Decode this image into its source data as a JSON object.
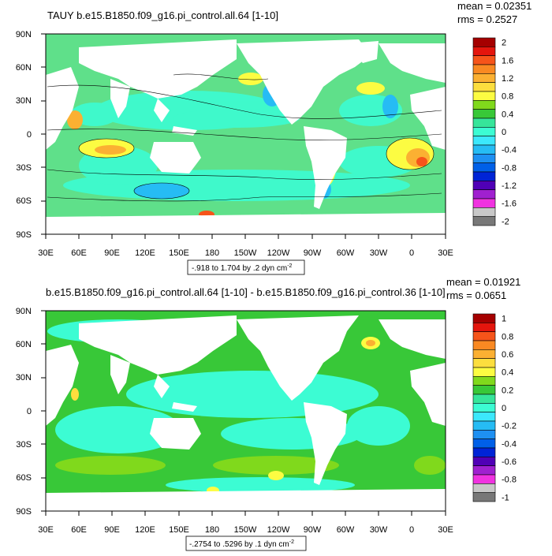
{
  "chart_data": [
    {
      "type": "heatmap",
      "title": "TAUY b.e15.B1850.f09_g16.pi_control.all.64 [1-10]",
      "stats": {
        "mean": "mean = 0.02351",
        "rms": "rms = 0.2527"
      },
      "x_ticks": [
        "30E",
        "60E",
        "90E",
        "120E",
        "150E",
        "180",
        "150W",
        "120W",
        "90W",
        "60W",
        "30W",
        "0",
        "30E"
      ],
      "y_ticks": [
        "90N",
        "60N",
        "30N",
        "0",
        "30S",
        "60S",
        "90S"
      ],
      "range_note": "-.918 to 1.704 by .2 dyn cm",
      "range_sup": "-2",
      "colorbar_labels": [
        "2",
        "1.6",
        "1.2",
        "0.8",
        "0.4",
        "0",
        "-0.4",
        "-0.8",
        "-1.2",
        "-1.6",
        "-2"
      ],
      "colors": [
        "#a50000",
        "#e4150d",
        "#f6541a",
        "#f98922",
        "#fbb032",
        "#fcde3e",
        "#fcfc42",
        "#80d91c",
        "#38c838",
        "#36e59a",
        "#3cfcd3",
        "#3ce8fc",
        "#26bcf4",
        "#1e90f2",
        "#0060e8",
        "#0024d6",
        "#5000b6",
        "#a020d0",
        "#f032e0",
        "#c8c8c8",
        "#787878"
      ],
      "colorbar_fills": [
        [
          "#a50000",
          "#e4150d"
        ],
        [
          "#e4150d",
          "#f6541a"
        ],
        [
          "#f6541a",
          "#f98922"
        ],
        [
          "#f98922",
          "#fbb032"
        ],
        [
          "#fbb032",
          "#fcde3e"
        ],
        [
          "#fcde3e",
          "#fcfc42"
        ],
        [
          "#80d91c",
          "#38c838"
        ],
        [
          "#36e59a",
          "#3cfcd3"
        ],
        [
          "#3ce8fc",
          "#26bcf4"
        ],
        [
          "#1e90f2",
          "#0060e8"
        ],
        [
          "#0024d6",
          "#5000b6"
        ],
        [
          "#a020d0",
          "#f032e0"
        ],
        [
          "#c8c8c8",
          "#787878"
        ]
      ]
    },
    {
      "type": "heatmap",
      "title": "b.e15.B1850.f09_g16.pi_control.all.64 [1-10] - b.e15.B1850.f09_g16.pi_control.36 [1-10]",
      "stats": {
        "mean": "mean = 0.01921",
        "rms": "rms = 0.0651"
      },
      "x_ticks": [
        "30E",
        "60E",
        "90E",
        "120E",
        "150E",
        "180",
        "150W",
        "120W",
        "90W",
        "60W",
        "30W",
        "0",
        "30E"
      ],
      "y_ticks": [
        "90N",
        "60N",
        "30N",
        "0",
        "30S",
        "60S",
        "90S"
      ],
      "range_note": "-.2754 to .5296 by .1 dyn cm",
      "range_sup": "-2",
      "colorbar_labels": [
        "1",
        "0.8",
        "0.6",
        "0.4",
        "0.2",
        "0",
        "-0.2",
        "-0.4",
        "-0.6",
        "-0.8",
        "-1"
      ],
      "colorbar_fills": [
        [
          "#a50000",
          "#e4150d"
        ],
        [
          "#e4150d",
          "#f6541a"
        ],
        [
          "#f6541a",
          "#f98922"
        ],
        [
          "#f98922",
          "#fbb032"
        ],
        [
          "#fbb032",
          "#fcde3e"
        ],
        [
          "#fcde3e",
          "#fcfc42"
        ],
        [
          "#80d91c",
          "#38c838"
        ],
        [
          "#36e59a",
          "#3cfcd3"
        ],
        [
          "#3ce8fc",
          "#26bcf4"
        ],
        [
          "#1e90f2",
          "#0060e8"
        ],
        [
          "#0024d6",
          "#5000b6"
        ],
        [
          "#a020d0",
          "#f032e0"
        ],
        [
          "#c8c8c8",
          "#787878"
        ]
      ]
    }
  ]
}
